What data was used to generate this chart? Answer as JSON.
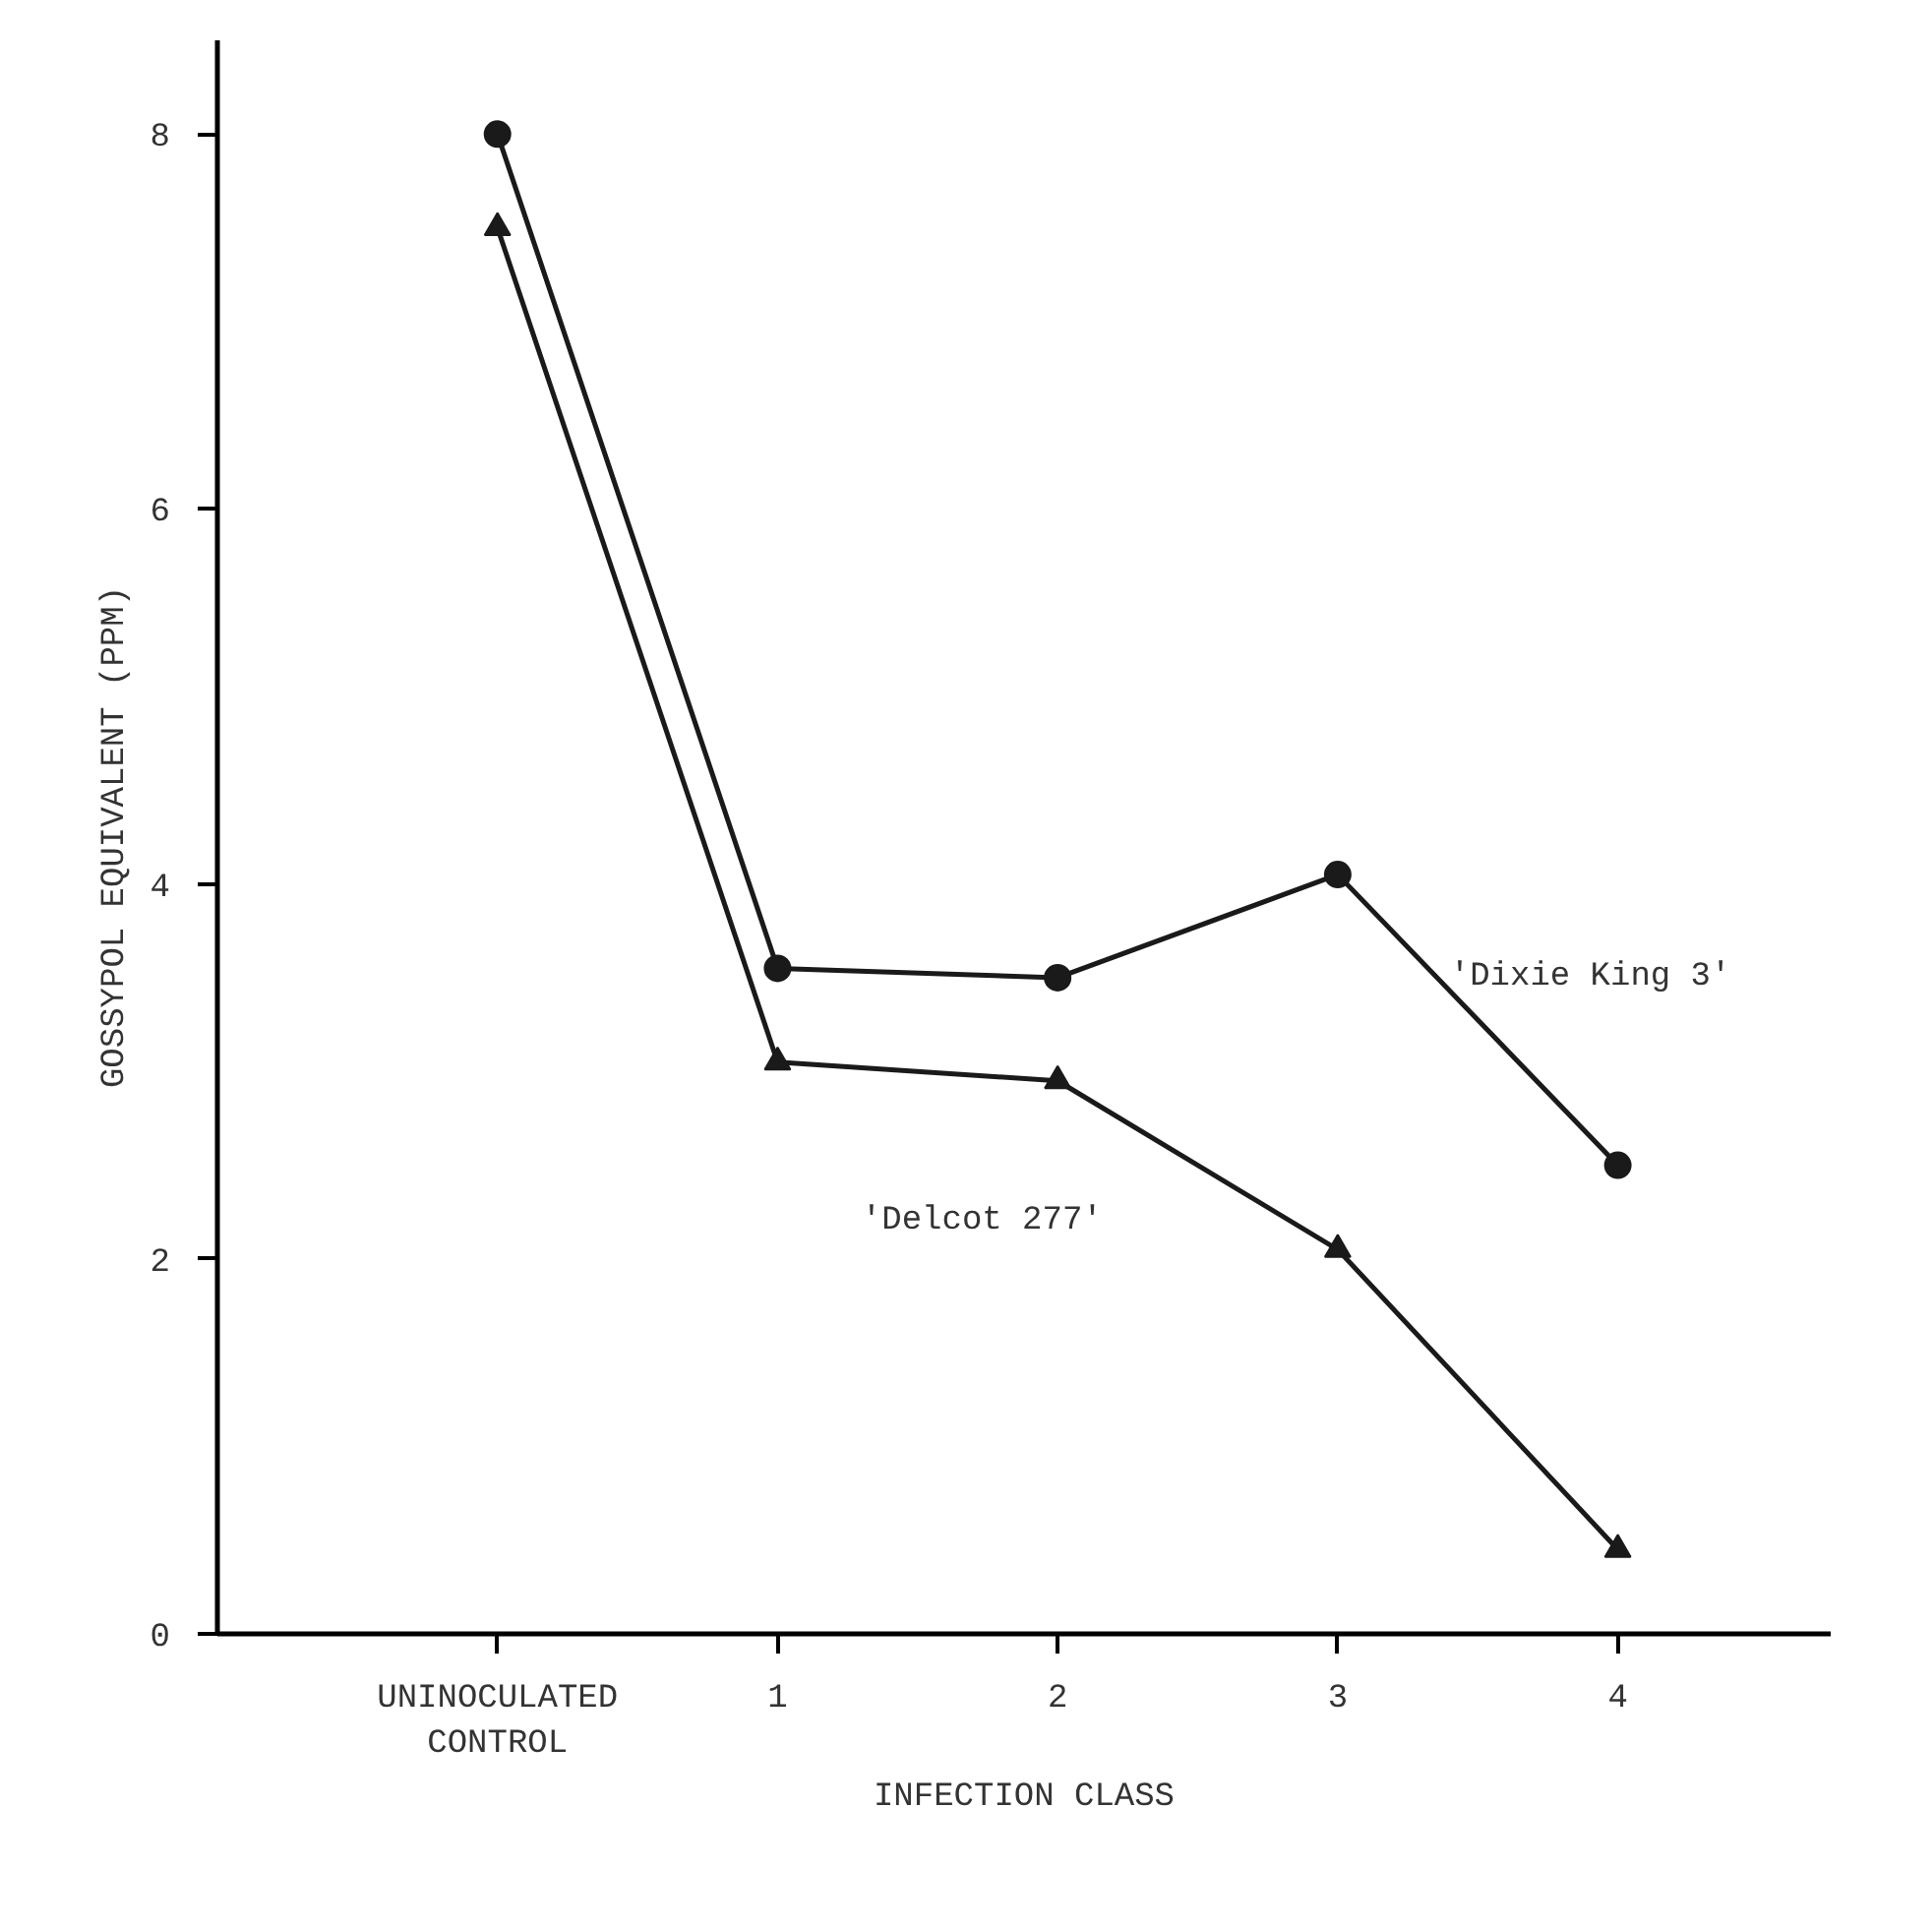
{
  "chart_data": {
    "type": "line",
    "xlabel": "INFECTION CLASS",
    "ylabel": "GOSSYPOL EQUIVALENT (PPM)",
    "categories": [
      "UNINOCULATED\nCONTROL",
      "1",
      "2",
      "3",
      "4"
    ],
    "ylim": [
      0,
      8.5
    ],
    "yticks": [
      0,
      2,
      4,
      6,
      8
    ],
    "grid": false,
    "series": [
      {
        "name": "'Dixie King 3'",
        "color": "#1a1a1a",
        "marker": "circle",
        "values": [
          8.0,
          3.55,
          3.5,
          4.05,
          2.5
        ]
      },
      {
        "name": "'Delcot 277'",
        "color": "#1a1a1a",
        "marker": "triangle",
        "values": [
          7.5,
          3.05,
          2.95,
          2.05,
          0.45
        ]
      }
    ]
  }
}
